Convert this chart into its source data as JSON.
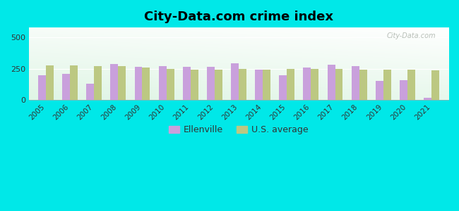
{
  "title": "City-Data.com crime index",
  "years": [
    2005,
    2006,
    2007,
    2008,
    2009,
    2010,
    2011,
    2012,
    2013,
    2014,
    2015,
    2016,
    2017,
    2018,
    2019,
    2020,
    2021
  ],
  "ellenville": [
    200,
    210,
    130,
    285,
    265,
    270,
    265,
    262,
    290,
    240,
    195,
    260,
    280,
    268,
    155,
    160,
    20
  ],
  "us_average": [
    275,
    278,
    270,
    268,
    258,
    248,
    245,
    245,
    250,
    245,
    248,
    248,
    248,
    245,
    242,
    240,
    238
  ],
  "ellenville_color": "#c9a0dc",
  "us_average_color": "#bcc882",
  "outer_bg": "#00e8e8",
  "ylim": [
    0,
    580
  ],
  "yticks": [
    0,
    250,
    500
  ],
  "bar_width": 0.32,
  "legend_ellenville": "Ellenville",
  "legend_us": "U.S. average",
  "watermark": "City-Data.com"
}
